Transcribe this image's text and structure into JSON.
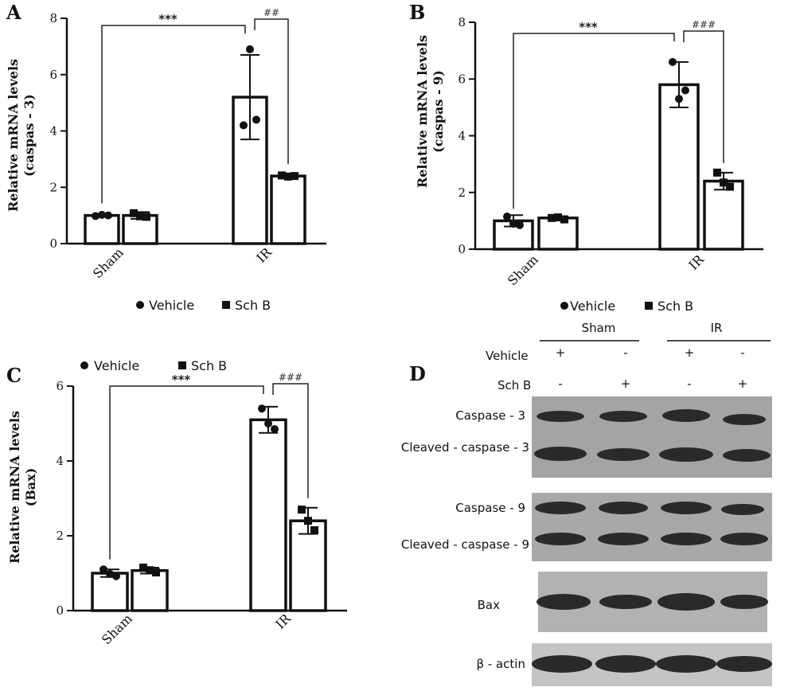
{
  "figure": {
    "legend": {
      "vehicle": "Vehicle",
      "schb": "Sch B"
    }
  },
  "chart_data": [
    {
      "panel": "A",
      "type": "bar",
      "ylabel": [
        "Relative mRNA levels",
        "(caspas - 3)"
      ],
      "ylim": [
        0,
        8
      ],
      "yticks": [
        0,
        2,
        4,
        6,
        8
      ],
      "categories": [
        "Sham",
        "IR"
      ],
      "series": [
        {
          "name": "Vehicle",
          "marker": "circle",
          "values": [
            1.0,
            5.2
          ],
          "err": [
            0.05,
            1.5
          ],
          "points": [
            [
              0.98,
              1.02,
              1.0
            ],
            [
              4.2,
              6.9,
              4.4
            ]
          ]
        },
        {
          "name": "Sch B",
          "marker": "square",
          "values": [
            1.0,
            2.4
          ],
          "err": [
            0.12,
            0.08
          ],
          "points": [
            [
              1.08,
              0.97,
              0.95
            ],
            [
              2.42,
              2.38,
              2.4
            ]
          ]
        }
      ],
      "significance": [
        {
          "label": "***",
          "from": "Sham-Vehicle",
          "to": "IR-Vehicle"
        },
        {
          "label": "##",
          "from": "IR-Vehicle",
          "to": "IR-Sch B"
        }
      ]
    },
    {
      "panel": "B",
      "type": "bar",
      "ylabel": [
        "Relative mRNA levels",
        "(caspas - 9)"
      ],
      "ylim": [
        0,
        8
      ],
      "yticks": [
        0,
        2,
        4,
        6,
        8
      ],
      "categories": [
        "Sham",
        "IR"
      ],
      "series": [
        {
          "name": "Vehicle",
          "marker": "circle",
          "values": [
            1.0,
            5.8
          ],
          "err": [
            0.2,
            0.8
          ],
          "points": [
            [
              1.15,
              0.9,
              0.85
            ],
            [
              6.6,
              5.3,
              5.6
            ]
          ]
        },
        {
          "name": "Sch B",
          "marker": "square",
          "values": [
            1.1,
            2.4
          ],
          "err": [
            0.06,
            0.3
          ],
          "points": [
            [
              1.1,
              1.12,
              1.05
            ],
            [
              2.7,
              2.35,
              2.2
            ]
          ]
        }
      ],
      "significance": [
        {
          "label": "***",
          "from": "Sham-Vehicle",
          "to": "IR-Vehicle"
        },
        {
          "label": "###",
          "from": "IR-Vehicle",
          "to": "IR-Sch B"
        }
      ]
    },
    {
      "panel": "C",
      "type": "bar",
      "ylabel": [
        "Relative mRNA levels",
        "(Bax)"
      ],
      "ylim": [
        0,
        6
      ],
      "yticks": [
        0,
        2,
        4,
        6
      ],
      "categories": [
        "Sham",
        "IR"
      ],
      "series": [
        {
          "name": "Vehicle",
          "marker": "circle",
          "values": [
            1.0,
            5.1
          ],
          "err": [
            0.1,
            0.35
          ],
          "points": [
            [
              1.1,
              0.98,
              0.92
            ],
            [
              5.4,
              5.0,
              4.85
            ]
          ]
        },
        {
          "name": "Sch B",
          "marker": "square",
          "values": [
            1.07,
            2.4
          ],
          "err": [
            0.08,
            0.35
          ],
          "points": [
            [
              1.15,
              1.08,
              1.02
            ],
            [
              2.7,
              2.4,
              2.15
            ]
          ]
        }
      ],
      "significance": [
        {
          "label": "***",
          "from": "Sham-Vehicle",
          "to": "IR-Vehicle"
        },
        {
          "label": "###",
          "from": "IR-Vehicle",
          "to": "IR-Sch B"
        }
      ]
    }
  ],
  "western_blot": {
    "panel": "D",
    "groups": [
      "Sham",
      "IR"
    ],
    "row_labels": [
      "Vehicle",
      "Sch B"
    ],
    "treatments": [
      [
        "+",
        "-",
        "+",
        "-"
      ],
      [
        "-",
        "+",
        "-",
        "+"
      ]
    ],
    "bands": [
      "Caspase - 3",
      "Cleaved - caspase - 3",
      "Caspase - 9",
      "Cleaved - caspase - 9",
      "Bax",
      "β - actin"
    ]
  }
}
